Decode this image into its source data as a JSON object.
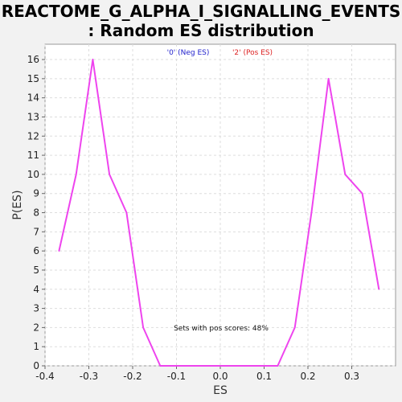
{
  "chart_data": {
    "type": "line",
    "title_line1": "REACTOME_G_ALPHA_I_SIGNALLING_EVENTS",
    "title_line2": ": Random ES distribution",
    "xlabel": "ES",
    "ylabel": "P(ES)",
    "xlim": [
      -0.4,
      0.4
    ],
    "ylim": [
      0,
      16.8
    ],
    "x_ticks": [
      -0.4,
      -0.3,
      -0.2,
      -0.1,
      0.0,
      0.1,
      0.2,
      0.3
    ],
    "x_tick_labels": [
      "-0.4",
      "-0.3",
      "-0.2",
      "-0.1",
      "0.0",
      "0.1",
      "0.2",
      "0.3"
    ],
    "y_ticks": [
      0,
      1,
      2,
      3,
      4,
      5,
      6,
      7,
      8,
      9,
      10,
      11,
      12,
      13,
      14,
      15,
      16
    ],
    "grid": true,
    "legend": [
      {
        "label": "'0' (Neg ES)",
        "color": "#2222cc"
      },
      {
        "label": "'2' (Pos ES)",
        "color": "#dd2222"
      }
    ],
    "annotation": "Sets with pos scores: 48%",
    "line_color": "#ee44ee",
    "series": [
      {
        "x": [
          -0.368,
          -0.329,
          -0.291,
          -0.253,
          -0.214,
          -0.176,
          -0.137,
          -0.099,
          -0.061,
          -0.022,
          0.016,
          0.055,
          0.093,
          0.131,
          0.17,
          0.208,
          0.247,
          0.285,
          0.324,
          0.362
        ],
        "y": [
          6,
          10,
          16,
          10,
          8,
          2,
          0,
          0,
          0,
          0,
          0,
          0,
          0,
          0,
          2,
          8,
          15,
          10,
          9,
          4
        ]
      }
    ]
  }
}
